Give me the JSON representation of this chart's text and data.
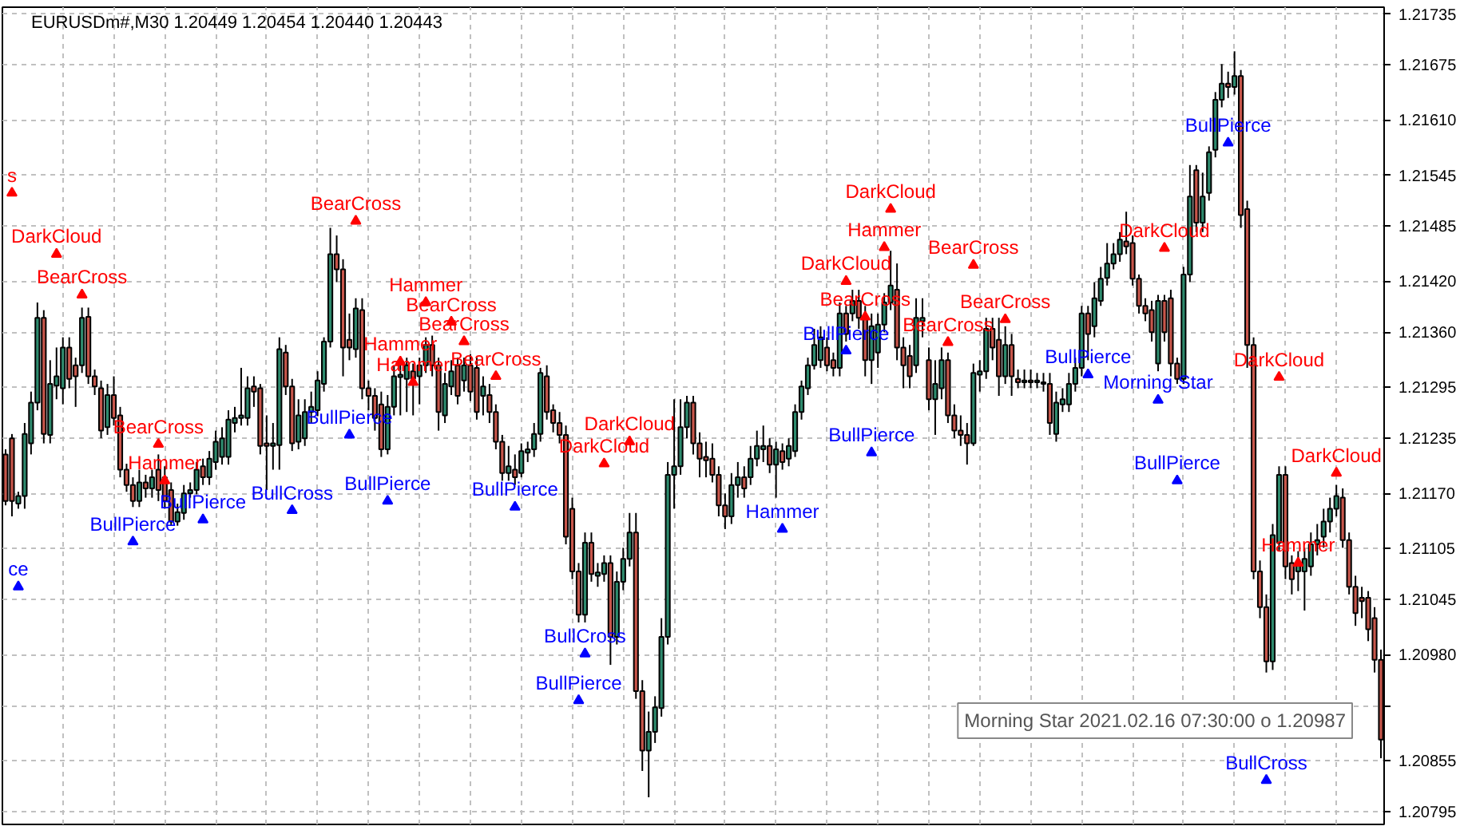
{
  "chart_data": {
    "type": "candlestick",
    "title": "EURUSDm#,M30 1.20449 1.20454 1.20440 1.20443",
    "annotations": [
      "Morning Star 2021.02.16 07:30:00 o 1.20987"
    ],
    "categories": [
      null,
      null,
      null,
      null,
      null,
      null,
      null,
      null,
      null,
      null,
      null,
      null,
      null,
      null,
      null,
      null,
      null,
      null,
      null,
      null,
      null,
      null,
      null,
      null,
      null,
      null,
      null,
      null,
      null,
      null,
      null,
      null,
      null,
      null,
      null,
      null,
      null,
      null,
      null,
      null,
      null,
      null,
      null,
      null,
      null,
      null,
      null,
      null,
      null,
      null,
      null,
      null,
      null,
      null,
      null,
      null,
      null,
      null,
      null,
      null,
      null,
      null,
      null,
      null,
      null,
      null,
      null,
      null,
      null,
      null,
      null,
      null,
      null,
      null,
      null,
      null,
      null,
      null,
      null,
      null,
      null,
      null,
      null,
      null,
      null,
      null,
      null,
      null,
      null,
      null,
      null,
      null,
      null,
      null,
      null,
      null,
      null,
      null,
      null,
      null,
      null,
      null,
      null,
      null,
      null,
      null,
      null,
      null,
      null,
      null,
      null,
      null,
      null,
      null,
      null,
      null,
      null,
      null,
      null,
      null,
      null,
      null,
      null,
      null,
      null,
      null,
      null,
      null,
      null,
      null,
      null,
      null,
      null,
      null,
      null,
      null,
      null,
      null,
      null,
      null,
      null,
      null,
      null,
      null,
      null,
      null,
      null,
      null,
      null,
      null,
      null,
      null,
      null,
      null,
      null,
      null,
      null,
      null,
      null,
      null,
      null,
      null,
      null,
      null,
      null,
      null,
      null,
      null,
      null,
      null,
      null,
      null,
      null,
      null,
      null,
      null,
      null,
      null,
      null,
      null,
      null,
      null,
      null,
      null,
      null,
      null,
      null,
      null,
      null,
      null,
      null,
      null,
      null,
      null,
      null,
      null,
      null,
      null,
      null,
      null,
      null,
      null,
      null,
      null,
      null,
      null,
      null,
      null,
      null,
      null,
      null,
      null,
      null,
      null,
      null,
      null,
      null
    ],
    "ohlc": [
      [
        1.21216,
        1.21222,
        1.21156,
        1.21161
      ],
      [
        1.21235,
        1.2124,
        1.21143,
        1.21161
      ],
      [
        1.21158,
        1.21172,
        1.21152,
        1.21167
      ],
      [
        1.21167,
        1.21253,
        1.21152,
        1.2124
      ],
      [
        1.21229,
        1.2129,
        1.21216,
        1.21277
      ],
      [
        1.21277,
        1.21395,
        1.21268,
        1.21377
      ],
      [
        1.21377,
        1.21386,
        1.21229,
        1.2124
      ],
      [
        1.21239,
        1.21327,
        1.21229,
        1.21299
      ],
      [
        1.21297,
        1.21342,
        1.21281,
        1.21308
      ],
      [
        1.21294,
        1.21354,
        1.21275,
        1.21342
      ],
      [
        1.21342,
        1.21354,
        1.21294,
        1.21305
      ],
      [
        1.21321,
        1.2133,
        1.21272,
        1.21308
      ],
      [
        1.21321,
        1.21389,
        1.21312,
        1.21377
      ],
      [
        1.21378,
        1.21389,
        1.21299,
        1.21308
      ],
      [
        1.21308,
        1.21316,
        1.21286,
        1.21296
      ],
      [
        1.21294,
        1.21303,
        1.21235,
        1.21244
      ],
      [
        1.21248,
        1.21299,
        1.21239,
        1.21286
      ],
      [
        1.21286,
        1.21308,
        1.2125,
        1.21259
      ],
      [
        1.21262,
        1.21272,
        1.21189,
        1.21198
      ],
      [
        1.21198,
        1.21205,
        1.21172,
        1.2118
      ],
      [
        1.2118,
        1.21189,
        1.21154,
        1.21161
      ],
      [
        1.21161,
        1.21198,
        1.21154,
        1.21183
      ],
      [
        1.21183,
        1.21192,
        1.21165,
        1.21176
      ],
      [
        1.21176,
        1.21198,
        1.21165,
        1.21189
      ],
      [
        1.21198,
        1.21216,
        1.21161,
        1.21174
      ],
      [
        1.21189,
        1.21202,
        1.21152,
        1.21161
      ],
      [
        1.21174,
        1.21183,
        1.21132,
        1.21137
      ],
      [
        1.21137,
        1.21158,
        1.21132,
        1.21148
      ],
      [
        1.21147,
        1.2118,
        1.21139,
        1.2117
      ],
      [
        1.2117,
        1.21183,
        1.21165,
        1.21174
      ],
      [
        1.21174,
        1.21207,
        1.21169,
        1.21198
      ],
      [
        1.21202,
        1.21211,
        1.2118,
        1.21189
      ],
      [
        1.21189,
        1.2122,
        1.2118,
        1.21211
      ],
      [
        1.21207,
        1.21244,
        1.21198,
        1.21231
      ],
      [
        1.21213,
        1.21248,
        1.21204,
        1.21235
      ],
      [
        1.21213,
        1.21268,
        1.21204,
        1.21257
      ],
      [
        1.21253,
        1.21272,
        1.21242,
        1.21259
      ],
      [
        1.21259,
        1.21318,
        1.2125,
        1.21262
      ],
      [
        1.21259,
        1.21308,
        1.2125,
        1.21294
      ],
      [
        1.21296,
        1.21308,
        1.21272,
        1.2129
      ],
      [
        1.21294,
        1.21299,
        1.21216,
        1.21226
      ],
      [
        1.21229,
        1.21262,
        1.21174,
        1.21226
      ],
      [
        1.21226,
        1.21253,
        1.21198,
        1.21229
      ],
      [
        1.21227,
        1.21354,
        1.21198,
        1.2134
      ],
      [
        1.21336,
        1.21345,
        1.21286,
        1.21296
      ],
      [
        1.21296,
        1.21305,
        1.2122,
        1.21229
      ],
      [
        1.21231,
        1.21281,
        1.21222,
        1.21262
      ],
      [
        1.21235,
        1.21281,
        1.21226,
        1.21266
      ],
      [
        1.21266,
        1.2129,
        1.21253,
        1.21272
      ],
      [
        1.21268,
        1.21314,
        1.21261,
        1.21303
      ],
      [
        1.21299,
        1.21354,
        1.2129,
        1.21349
      ],
      [
        1.21349,
        1.21483,
        1.21342,
        1.21452
      ],
      [
        1.21452,
        1.21474,
        1.21419,
        1.21434
      ],
      [
        1.21434,
        1.21446,
        1.21308,
        1.21342
      ],
      [
        1.21351,
        1.21382,
        1.21327,
        1.21342
      ],
      [
        1.2134,
        1.214,
        1.2133,
        1.21388
      ],
      [
        1.21386,
        1.214,
        1.21281,
        1.21294
      ],
      [
        1.21294,
        1.21303,
        1.21268,
        1.21285
      ],
      [
        1.21285,
        1.21294,
        1.21244,
        1.21259
      ],
      [
        1.21275,
        1.2129,
        1.21213,
        1.21222
      ],
      [
        1.21222,
        1.21286,
        1.21216,
        1.21272
      ],
      [
        1.21272,
        1.21321,
        1.21262,
        1.21308
      ],
      [
        1.21307,
        1.21323,
        1.21262,
        1.2131
      ],
      [
        1.21305,
        1.2133,
        1.21266,
        1.21321
      ],
      [
        1.21314,
        1.21323,
        1.21262,
        1.21305
      ],
      [
        1.21308,
        1.2133,
        1.21275,
        1.21321
      ],
      [
        1.21321,
        1.21354,
        1.21312,
        1.21345
      ],
      [
        1.21345,
        1.21356,
        1.21308,
        1.21321
      ],
      [
        1.21321,
        1.2133,
        1.21244,
        1.21266
      ],
      [
        1.21262,
        1.21312,
        1.21253,
        1.21299
      ],
      [
        1.21296,
        1.21327,
        1.21286,
        1.21314
      ],
      [
        1.21321,
        1.2133,
        1.21275,
        1.21285
      ],
      [
        1.21303,
        1.2133,
        1.2129,
        1.21321
      ],
      [
        1.21321,
        1.21334,
        1.21279,
        1.2129
      ],
      [
        1.21318,
        1.2133,
        1.21257,
        1.21266
      ],
      [
        1.21285,
        1.21308,
        1.21262,
        1.21296
      ],
      [
        1.21286,
        1.21299,
        1.21253,
        1.21266
      ],
      [
        1.21266,
        1.21275,
        1.21222,
        1.21231
      ],
      [
        1.21231,
        1.21239,
        1.21185,
        1.21194
      ],
      [
        1.21194,
        1.21226,
        1.21185,
        1.21202
      ],
      [
        1.21198,
        1.21216,
        1.2118,
        1.21189
      ],
      [
        1.21194,
        1.21229,
        1.21189,
        1.2122
      ],
      [
        1.21218,
        1.21231,
        1.21207,
        1.21222
      ],
      [
        1.21222,
        1.21253,
        1.21213,
        1.2124
      ],
      [
        1.2124,
        1.21318,
        1.21231,
        1.21312
      ],
      [
        1.21308,
        1.21321,
        1.21257,
        1.21266
      ],
      [
        1.21268,
        1.21275,
        1.21242,
        1.21253
      ],
      [
        1.21253,
        1.21266,
        1.21229,
        1.21239
      ],
      [
        1.21239,
        1.2125,
        1.2111,
        1.21119
      ],
      [
        1.21152,
        1.21165,
        1.21069,
        1.21078
      ],
      [
        1.21078,
        1.21088,
        1.21018,
        1.21027
      ],
      [
        1.21027,
        1.21124,
        1.21018,
        1.21112
      ],
      [
        1.21112,
        1.21124,
        1.21066,
        1.21075
      ],
      [
        1.21073,
        1.21088,
        1.2106,
        1.21077
      ],
      [
        1.21075,
        1.21097,
        1.21066,
        1.21088
      ],
      [
        1.21088,
        1.21097,
        1.20968,
        1.21001
      ],
      [
        1.21001,
        1.21078,
        1.20992,
        1.21066
      ],
      [
        1.21066,
        1.21106,
        1.21056,
        1.21093
      ],
      [
        1.21093,
        1.21147,
        1.21084,
        1.21124
      ],
      [
        1.21124,
        1.21147,
        1.20928,
        1.20937
      ],
      [
        1.20937,
        1.2095,
        1.20843,
        1.20867
      ],
      [
        1.20867,
        1.20913,
        1.20812,
        1.20889
      ],
      [
        1.20889,
        1.20931,
        1.20876,
        1.20918
      ],
      [
        1.20917,
        1.21023,
        1.20907,
        1.21001
      ],
      [
        1.21001,
        1.21207,
        1.20992,
        1.21192
      ],
      [
        1.21192,
        1.21281,
        1.21152,
        1.21202
      ],
      [
        1.21202,
        1.21281,
        1.21192,
        1.21248
      ],
      [
        1.21248,
        1.21285,
        1.21235,
        1.21277
      ],
      [
        1.21277,
        1.21285,
        1.21216,
        1.21229
      ],
      [
        1.21229,
        1.21242,
        1.21189,
        1.21211
      ],
      [
        1.21213,
        1.21231,
        1.21189,
        1.21209
      ],
      [
        1.21211,
        1.21229,
        1.21183,
        1.21192
      ],
      [
        1.21192,
        1.21202,
        1.21143,
        1.21156
      ],
      [
        1.21156,
        1.2117,
        1.21128,
        1.21143
      ],
      [
        1.21143,
        1.21194,
        1.21134,
        1.2118
      ],
      [
        1.2118,
        1.21207,
        1.21165,
        1.21189
      ],
      [
        1.21189,
        1.21202,
        1.21165,
        1.21176
      ],
      [
        1.21189,
        1.21226,
        1.2118,
        1.21211
      ],
      [
        1.21211,
        1.21244,
        1.21202,
        1.21226
      ],
      [
        1.21222,
        1.2125,
        1.21207,
        1.21226
      ],
      [
        1.21226,
        1.21235,
        1.21194,
        1.21204
      ],
      [
        1.21204,
        1.21231,
        1.21165,
        1.21222
      ],
      [
        1.2122,
        1.21229,
        1.21198,
        1.21207
      ],
      [
        1.21211,
        1.21235,
        1.21202,
        1.21226
      ],
      [
        1.2122,
        1.21275,
        1.21213,
        1.21266
      ],
      [
        1.21266,
        1.21303,
        1.21257,
        1.21296
      ],
      [
        1.21294,
        1.2133,
        1.21286,
        1.21321
      ],
      [
        1.21321,
        1.21364,
        1.21316,
        1.21345
      ],
      [
        1.21327,
        1.21367,
        1.21318,
        1.21354
      ],
      [
        1.21342,
        1.21354,
        1.21314,
        1.21321
      ],
      [
        1.21327,
        1.21336,
        1.21308,
        1.21318
      ],
      [
        1.21318,
        1.21395,
        1.21308,
        1.21382
      ],
      [
        1.21382,
        1.21391,
        1.21349,
        1.21358
      ],
      [
        1.21382,
        1.2141,
        1.21373,
        1.21397
      ],
      [
        1.21397,
        1.2141,
        1.21364,
        1.21377
      ],
      [
        1.21377,
        1.21391,
        1.21308,
        1.21327
      ],
      [
        1.21327,
        1.21382,
        1.21299,
        1.21367
      ],
      [
        1.21336,
        1.21382,
        1.21318,
        1.21369
      ],
      [
        1.21369,
        1.21406,
        1.2136,
        1.21395
      ],
      [
        1.21395,
        1.21456,
        1.21386,
        1.21415
      ],
      [
        1.2141,
        1.21441,
        1.21327,
        1.21342
      ],
      [
        1.21342,
        1.21354,
        1.21294,
        1.21321
      ],
      [
        1.21332,
        1.21345,
        1.21294,
        1.21308
      ],
      [
        1.21321,
        1.214,
        1.21312,
        1.21377
      ],
      [
        1.21373,
        1.214,
        1.21354,
        1.21377
      ],
      [
        1.21327,
        1.21342,
        1.21268,
        1.21281
      ],
      [
        1.21281,
        1.21327,
        1.21239,
        1.21299
      ],
      [
        1.21294,
        1.21342,
        1.21281,
        1.21327
      ],
      [
        1.21327,
        1.21336,
        1.21253,
        1.21262
      ],
      [
        1.21262,
        1.21275,
        1.21235,
        1.21244
      ],
      [
        1.21244,
        1.21262,
        1.21226,
        1.21239
      ],
      [
        1.21239,
        1.21253,
        1.21204,
        1.21229
      ],
      [
        1.21229,
        1.21323,
        1.21226,
        1.21312
      ],
      [
        1.2131,
        1.21327,
        1.2129,
        1.21314
      ],
      [
        1.21314,
        1.21377,
        1.21305,
        1.21364
      ],
      [
        1.21364,
        1.21377,
        1.21327,
        1.21342
      ],
      [
        1.21351,
        1.21377,
        1.21285,
        1.21308
      ],
      [
        1.21308,
        1.21367,
        1.21299,
        1.21345
      ],
      [
        1.21345,
        1.21358,
        1.21285,
        1.21308
      ],
      [
        1.21305,
        1.21316,
        1.21294,
        1.21301
      ],
      [
        1.21301,
        1.21316,
        1.21294,
        1.21303
      ],
      [
        1.21303,
        1.21316,
        1.21294,
        1.21301
      ],
      [
        1.21301,
        1.21312,
        1.21294,
        1.21303
      ],
      [
        1.21301,
        1.21312,
        1.2129,
        1.21299
      ],
      [
        1.21299,
        1.21312,
        1.21239,
        1.21253
      ],
      [
        1.2124,
        1.2129,
        1.21231,
        1.21277
      ],
      [
        1.21275,
        1.21294,
        1.21266,
        1.21281
      ],
      [
        1.21275,
        1.21312,
        1.21266,
        1.21299
      ],
      [
        1.21299,
        1.2133,
        1.2129,
        1.21318
      ],
      [
        1.21318,
        1.21391,
        1.21308,
        1.21382
      ],
      [
        1.21382,
        1.21391,
        1.21327,
        1.21358
      ],
      [
        1.21367,
        1.21419,
        1.21354,
        1.214
      ],
      [
        1.21397,
        1.21437,
        1.21391,
        1.21423
      ],
      [
        1.21424,
        1.21465,
        1.21415,
        1.21441
      ],
      [
        1.21441,
        1.21465,
        1.21434,
        1.21452
      ],
      [
        1.21452,
        1.21478,
        1.21443,
        1.21469
      ],
      [
        1.21467,
        1.21502,
        1.21452,
        1.21461
      ],
      [
        1.21465,
        1.21474,
        1.21415,
        1.21423
      ],
      [
        1.21423,
        1.21428,
        1.21382,
        1.21391
      ],
      [
        1.21391,
        1.214,
        1.21373,
        1.21382
      ],
      [
        1.21386,
        1.21397,
        1.21349,
        1.2136
      ],
      [
        1.21323,
        1.21404,
        1.21314,
        1.21397
      ],
      [
        1.21397,
        1.21404,
        1.21349,
        1.2136
      ],
      [
        1.214,
        1.2141,
        1.21308,
        1.21323
      ],
      [
        1.21323,
        1.2133,
        1.21299,
        1.21305
      ],
      [
        1.21305,
        1.21437,
        1.21299,
        1.21428
      ],
      [
        1.21428,
        1.21557,
        1.21419,
        1.2152
      ],
      [
        1.21551,
        1.21557,
        1.21478,
        1.21489
      ],
      [
        1.21489,
        1.21548,
        1.21478,
        1.2152
      ],
      [
        1.21524,
        1.21579,
        1.21515,
        1.21572
      ],
      [
        1.21575,
        1.21643,
        1.21566,
        1.21634
      ],
      [
        1.21634,
        1.21676,
        1.21625,
        1.21653
      ],
      [
        1.21653,
        1.21667,
        1.21636,
        1.21649
      ],
      [
        1.21649,
        1.21691,
        1.2164,
        1.21662
      ],
      [
        1.21662,
        1.21669,
        1.21483,
        1.21498
      ],
      [
        1.21505,
        1.21515,
        1.21318,
        1.21345
      ],
      [
        1.21345,
        1.21354,
        1.21069,
        1.21078
      ],
      [
        1.21078,
        1.21091,
        1.21023,
        1.21036
      ],
      [
        1.21036,
        1.21051,
        1.20959,
        1.20972
      ],
      [
        1.20972,
        1.21134,
        1.20962,
        1.21121
      ],
      [
        1.21112,
        1.21202,
        1.21102,
        1.21192
      ],
      [
        1.21192,
        1.21202,
        1.21069,
        1.21084
      ],
      [
        1.21088,
        1.21097,
        1.21051,
        1.21069
      ],
      [
        1.21078,
        1.21102,
        1.21055,
        1.21088
      ],
      [
        1.21078,
        1.21106,
        1.21032,
        1.21093
      ],
      [
        1.21084,
        1.21124,
        1.21073,
        1.2111
      ],
      [
        1.2111,
        1.21134,
        1.21097,
        1.21115
      ],
      [
        1.21119,
        1.21152,
        1.21106,
        1.21137
      ],
      [
        1.21137,
        1.21165,
        1.21124,
        1.21152
      ],
      [
        1.21152,
        1.2118,
        1.21143,
        1.21167
      ],
      [
        1.21165,
        1.21176,
        1.21106,
        1.21115
      ],
      [
        1.21115,
        1.21124,
        1.21051,
        1.2106
      ],
      [
        1.2106,
        1.21073,
        1.21014,
        1.21029
      ],
      [
        1.21047,
        1.2106,
        1.21023,
        1.21043
      ],
      [
        1.21047,
        1.21055,
        1.20996,
        1.2101
      ],
      [
        1.21023,
        1.21036,
        1.20959,
        1.20974
      ],
      [
        1.20974,
        1.20986,
        1.20858,
        1.2088
      ]
    ],
    "ylim": [
      1.2078,
      1.21743
    ],
    "yticks": [
      {
        "value": 1.21735,
        "label": "1.21735"
      },
      {
        "value": 1.21675,
        "label": "1.21675"
      },
      {
        "value": 1.2161,
        "label": "1.21610"
      },
      {
        "value": 1.21545,
        "label": "1.21545"
      },
      {
        "value": 1.21485,
        "label": "1.21485"
      },
      {
        "value": 1.2142,
        "label": "1.21420"
      },
      {
        "value": 1.2136,
        "label": "1.21360"
      },
      {
        "value": 1.21295,
        "label": "1.21295"
      },
      {
        "value": 1.21235,
        "label": "1.21235"
      },
      {
        "value": 1.2117,
        "label": "1.21170"
      },
      {
        "value": 1.21105,
        "label": "1.21105"
      },
      {
        "value": 1.21045,
        "label": "1.21045"
      },
      {
        "value": 1.2098,
        "label": "1.20980"
      },
      {
        "value": 1.2092,
        "label": null
      },
      {
        "value": 1.20855,
        "label": "1.20855"
      },
      {
        "value": 1.20795,
        "label": "1.20795"
      }
    ],
    "tick_labels": "y",
    "grid": true,
    "marker": "triangle",
    "series": [
      {
        "type": "scatter",
        "color": "#ff0000",
        "values": [
          null,
          1.21524,
          null,
          null,
          null,
          null,
          null,
          null,
          1.21452,
          null,
          null,
          null,
          1.21404,
          null,
          null,
          null,
          null,
          null,
          null,
          null,
          null,
          null,
          null,
          null,
          1.21228,
          1.21185,
          null,
          null,
          null,
          null,
          null,
          null,
          null,
          null,
          null,
          null,
          null,
          null,
          null,
          null,
          null,
          null,
          null,
          null,
          null,
          null,
          null,
          null,
          null,
          null,
          null,
          null,
          null,
          null,
          null,
          1.21491,
          null,
          null,
          null,
          null,
          null,
          null,
          1.21325,
          null,
          1.21301,
          null,
          1.21395,
          null,
          null,
          null,
          1.21372,
          null,
          1.21349,
          null,
          null,
          null,
          null,
          1.21308,
          null,
          null,
          null,
          null,
          null,
          null,
          null,
          null,
          null,
          null,
          null,
          null,
          null,
          null,
          null,
          null,
          1.21205,
          null,
          null,
          null,
          1.21231,
          null,
          null,
          null,
          null,
          null,
          null,
          null,
          null,
          null,
          null,
          null,
          null,
          null,
          null,
          null,
          null,
          null,
          null,
          null,
          null,
          null,
          null,
          null,
          null,
          null,
          null,
          null,
          null,
          null,
          null,
          null,
          null,
          null,
          1.2142,
          null,
          null,
          1.21378,
          null,
          null,
          1.2146,
          1.21505,
          null,
          null,
          null,
          null,
          null,
          null,
          null,
          null,
          1.21348,
          null,
          null,
          null,
          1.21439,
          null,
          null,
          null,
          null,
          1.21375,
          null,
          null,
          null,
          null,
          null,
          null,
          null,
          null,
          null,
          null,
          null,
          null,
          null,
          null,
          null,
          null,
          null,
          null,
          null,
          null,
          null,
          null,
          null,
          null,
          1.21459,
          null,
          null,
          null,
          null,
          null,
          null,
          null,
          null,
          null,
          null,
          null,
          null,
          null,
          null,
          null,
          null,
          null,
          1.21307,
          null,
          null,
          1.21088,
          null,
          null,
          null,
          null,
          null,
          1.21194,
          null,
          null,
          null,
          null,
          null,
          null,
          null
        ],
        "value_labels": [
          null,
          "s",
          null,
          null,
          null,
          null,
          null,
          null,
          "DarkCloud",
          null,
          null,
          null,
          "BearCross",
          null,
          null,
          null,
          null,
          null,
          null,
          null,
          null,
          null,
          null,
          null,
          "BearCross",
          "Hammer",
          null,
          null,
          null,
          null,
          null,
          null,
          null,
          null,
          null,
          null,
          null,
          null,
          null,
          null,
          null,
          null,
          null,
          null,
          null,
          null,
          null,
          null,
          null,
          null,
          null,
          null,
          null,
          null,
          null,
          "BearCross",
          null,
          null,
          null,
          null,
          null,
          null,
          "Hammer",
          null,
          "Hammer",
          null,
          "Hammer",
          null,
          null,
          null,
          "BearCross",
          null,
          "BearCross",
          null,
          null,
          null,
          null,
          "BearCross",
          null,
          null,
          null,
          null,
          null,
          null,
          null,
          null,
          null,
          null,
          null,
          null,
          null,
          null,
          null,
          null,
          "DarkCloud",
          null,
          null,
          null,
          "DarkCloud",
          null,
          null,
          null,
          null,
          null,
          null,
          null,
          null,
          null,
          null,
          null,
          null,
          null,
          null,
          null,
          null,
          null,
          null,
          null,
          null,
          null,
          null,
          null,
          null,
          null,
          null,
          null,
          null,
          null,
          null,
          null,
          null,
          null,
          "DarkCloud",
          null,
          null,
          "BearCross",
          null,
          null,
          "Hammer",
          "DarkCloud",
          null,
          null,
          null,
          null,
          null,
          null,
          null,
          null,
          "BearCross",
          null,
          null,
          null,
          "BearCross",
          null,
          null,
          null,
          null,
          "BearCross",
          null,
          null,
          null,
          null,
          null,
          null,
          null,
          null,
          null,
          null,
          null,
          null,
          null,
          null,
          null,
          null,
          null,
          null,
          null,
          null,
          null,
          null,
          null,
          null,
          "DarkCloud",
          null,
          null,
          null,
          null,
          null,
          null,
          null,
          null,
          null,
          null,
          null,
          null,
          null,
          null,
          null,
          null,
          null,
          "DarkCloud",
          null,
          null,
          "Hammer",
          null,
          null,
          null,
          null,
          null,
          "DarkCloud",
          null,
          null,
          null,
          null,
          null,
          null,
          null
        ]
      },
      {
        "type": "scatter",
        "color": "#0000ff",
        "values": [
          null,
          null,
          1.2106,
          null,
          null,
          null,
          null,
          null,
          null,
          null,
          null,
          null,
          null,
          null,
          null,
          null,
          null,
          null,
          null,
          null,
          1.21113,
          null,
          null,
          null,
          null,
          null,
          null,
          null,
          null,
          null,
          null,
          1.21139,
          null,
          null,
          null,
          null,
          null,
          null,
          null,
          null,
          null,
          null,
          null,
          null,
          null,
          1.2115,
          null,
          null,
          null,
          null,
          null,
          null,
          null,
          null,
          1.21239,
          null,
          null,
          null,
          null,
          null,
          1.21161,
          null,
          null,
          null,
          null,
          null,
          null,
          null,
          null,
          null,
          null,
          null,
          null,
          null,
          null,
          null,
          null,
          null,
          null,
          null,
          1.21154,
          null,
          null,
          null,
          null,
          null,
          null,
          null,
          null,
          null,
          1.20926,
          1.20981,
          null,
          null,
          null,
          null,
          null,
          null,
          null,
          null,
          null,
          null,
          null,
          null,
          null,
          null,
          null,
          null,
          null,
          null,
          null,
          null,
          null,
          null,
          null,
          null,
          null,
          null,
          null,
          null,
          null,
          null,
          1.21128,
          null,
          null,
          null,
          null,
          null,
          null,
          null,
          null,
          null,
          1.21338,
          null,
          null,
          null,
          1.21218,
          null,
          null,
          null,
          null,
          null,
          null,
          null,
          null,
          null,
          null,
          null,
          null,
          null,
          null,
          null,
          null,
          null,
          null,
          null,
          null,
          null,
          null,
          null,
          null,
          null,
          null,
          null,
          null,
          null,
          null,
          null,
          null,
          null,
          1.2131,
          null,
          null,
          null,
          null,
          null,
          null,
          null,
          null,
          null,
          null,
          1.2128,
          null,
          null,
          1.21185,
          null,
          null,
          null,
          null,
          null,
          null,
          null,
          1.21583,
          null,
          null,
          null,
          null,
          null,
          1.20832,
          null,
          null,
          null,
          null,
          null,
          null,
          null,
          null,
          null,
          null,
          null,
          null,
          null,
          null,
          null,
          null,
          null,
          null
        ],
        "value_labels": [
          null,
          null,
          "ce",
          null,
          null,
          null,
          null,
          null,
          null,
          null,
          null,
          null,
          null,
          null,
          null,
          null,
          null,
          null,
          null,
          null,
          "BullPierce",
          null,
          null,
          null,
          null,
          null,
          null,
          null,
          null,
          null,
          null,
          "BullPierce",
          null,
          null,
          null,
          null,
          null,
          null,
          null,
          null,
          null,
          null,
          null,
          null,
          null,
          "BullCross",
          null,
          null,
          null,
          null,
          null,
          null,
          null,
          null,
          "BullPierce",
          null,
          null,
          null,
          null,
          null,
          "BullPierce",
          null,
          null,
          null,
          null,
          null,
          null,
          null,
          null,
          null,
          null,
          null,
          null,
          null,
          null,
          null,
          null,
          null,
          null,
          null,
          "BullPierce",
          null,
          null,
          null,
          null,
          null,
          null,
          null,
          null,
          null,
          "BullPierce",
          "BullCross",
          null,
          null,
          null,
          null,
          null,
          null,
          null,
          null,
          null,
          null,
          null,
          null,
          null,
          null,
          null,
          null,
          null,
          null,
          null,
          null,
          null,
          null,
          null,
          null,
          null,
          null,
          null,
          null,
          null,
          null,
          "Hammer",
          null,
          null,
          null,
          null,
          null,
          null,
          null,
          null,
          null,
          "BullPierce",
          null,
          null,
          null,
          "BullPierce",
          null,
          null,
          null,
          null,
          null,
          null,
          null,
          null,
          null,
          null,
          null,
          null,
          null,
          null,
          null,
          null,
          null,
          null,
          null,
          null,
          null,
          null,
          null,
          null,
          null,
          null,
          null,
          null,
          null,
          null,
          null,
          null,
          null,
          "BullPierce",
          null,
          null,
          null,
          null,
          null,
          null,
          null,
          null,
          null,
          null,
          "Morning Star",
          null,
          null,
          "BullPierce",
          null,
          null,
          null,
          null,
          null,
          null,
          null,
          "BullPierce",
          null,
          null,
          null,
          null,
          null,
          "BullCross",
          null,
          null,
          null,
          null,
          null,
          null,
          null,
          null,
          null,
          null,
          null,
          null,
          null,
          null,
          null,
          null,
          null,
          null
        ]
      }
    ]
  }
}
